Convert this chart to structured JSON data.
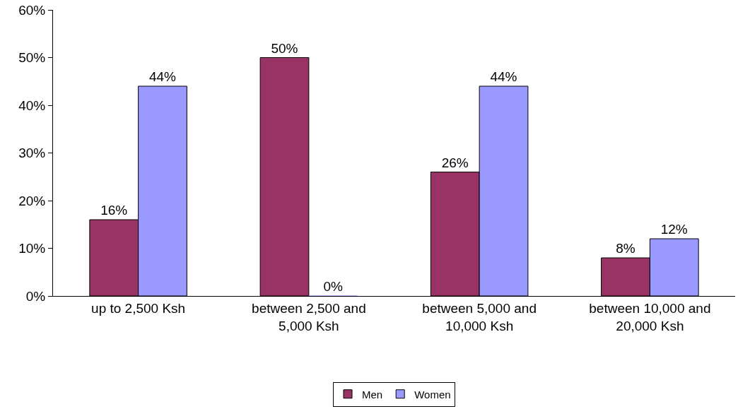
{
  "chart_data": {
    "type": "bar",
    "categories": [
      "up to 2,500 Ksh",
      "between 2,500 and\n5,000 Ksh",
      "between 5,000 and\n10,000 Ksh",
      "between 10,000 and\n20,000 Ksh"
    ],
    "series": [
      {
        "name": "Men",
        "color": "#993366",
        "values": [
          16,
          50,
          26,
          8
        ],
        "value_labels": [
          "16%",
          "50%",
          "26%",
          "8%"
        ]
      },
      {
        "name": "Women",
        "color": "#9999ff",
        "values": [
          44,
          0,
          44,
          12
        ],
        "value_labels": [
          "44%",
          "0%",
          "44%",
          "12%"
        ]
      }
    ],
    "ylim": [
      0,
      60
    ],
    "yticks": [
      {
        "value": 0,
        "label": "0%"
      },
      {
        "value": 10,
        "label": "10%"
      },
      {
        "value": 20,
        "label": "20%"
      },
      {
        "value": 30,
        "label": "30%"
      },
      {
        "value": 40,
        "label": "40%"
      },
      {
        "value": 50,
        "label": "50%"
      },
      {
        "value": 60,
        "label": "60%"
      }
    ],
    "grid": false,
    "legend": "bottom"
  }
}
